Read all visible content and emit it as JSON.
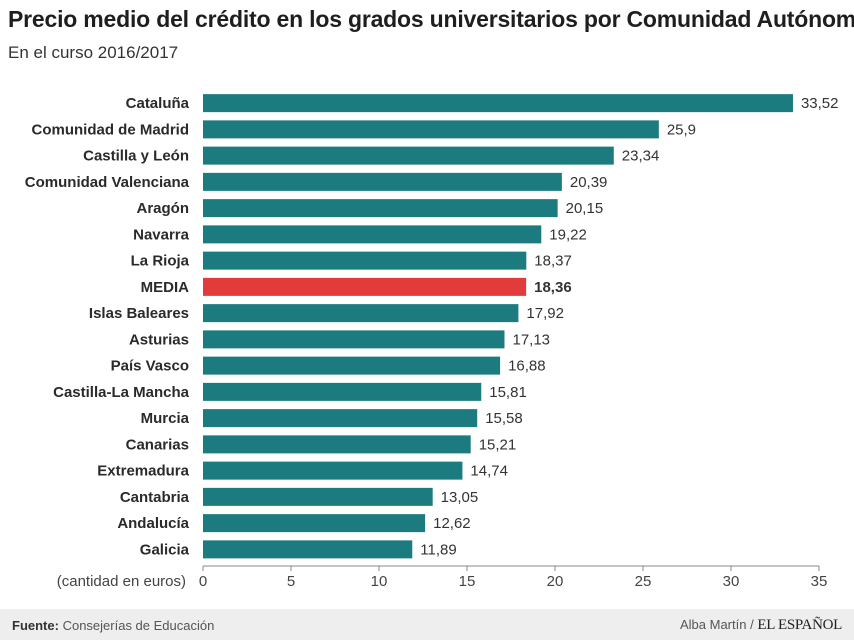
{
  "header": {
    "title": "Precio medio del crédito en los grados universitarios por Comunidad Autónoma",
    "subtitle": "En el curso 2016/2017"
  },
  "colors": {
    "bar": "#1c7b7e",
    "highlight": "#e23b3b",
    "axis": "#888888"
  },
  "chart_data": {
    "type": "bar",
    "orientation": "horizontal",
    "title": "Precio medio del crédito en los grados universitarios por Comunidad Autónoma",
    "subtitle": "En el curso 2016/2017",
    "xlabel": "(cantidad en euros)",
    "ylabel": "",
    "xlim": [
      0,
      35
    ],
    "xticks": [
      0,
      5,
      10,
      15,
      20,
      25,
      30,
      35
    ],
    "grid": false,
    "highlight_category": "MEDIA",
    "categories": [
      "Cataluña",
      "Comunidad de Madrid",
      "Castilla y León",
      "Comunidad Valenciana",
      "Aragón",
      "Navarra",
      "La Rioja",
      "MEDIA",
      "Islas Baleares",
      "Asturias",
      "País Vasco",
      "Castilla-La Mancha",
      "Murcia",
      "Canarias",
      "Extremadura",
      "Cantabria",
      "Andalucía",
      "Galicia"
    ],
    "values": [
      33.52,
      25.9,
      23.34,
      20.39,
      20.15,
      19.22,
      18.37,
      18.36,
      17.92,
      17.13,
      16.88,
      15.81,
      15.58,
      15.21,
      14.74,
      13.05,
      12.62,
      11.89
    ],
    "value_labels": [
      "33,52",
      "25,9",
      "23,34",
      "20,39",
      "20,15",
      "19,22",
      "18,37",
      "18,36",
      "17,92",
      "17,13",
      "16,88",
      "15,81",
      "15,58",
      "15,21",
      "14,74",
      "13,05",
      "12,62",
      "11,89"
    ]
  },
  "footer": {
    "source_label": "Fuente:",
    "source_text": "Consejerías de Educación",
    "author": "Alba Martín",
    "separator": "/",
    "brand": "EL ESPAÑOL"
  }
}
